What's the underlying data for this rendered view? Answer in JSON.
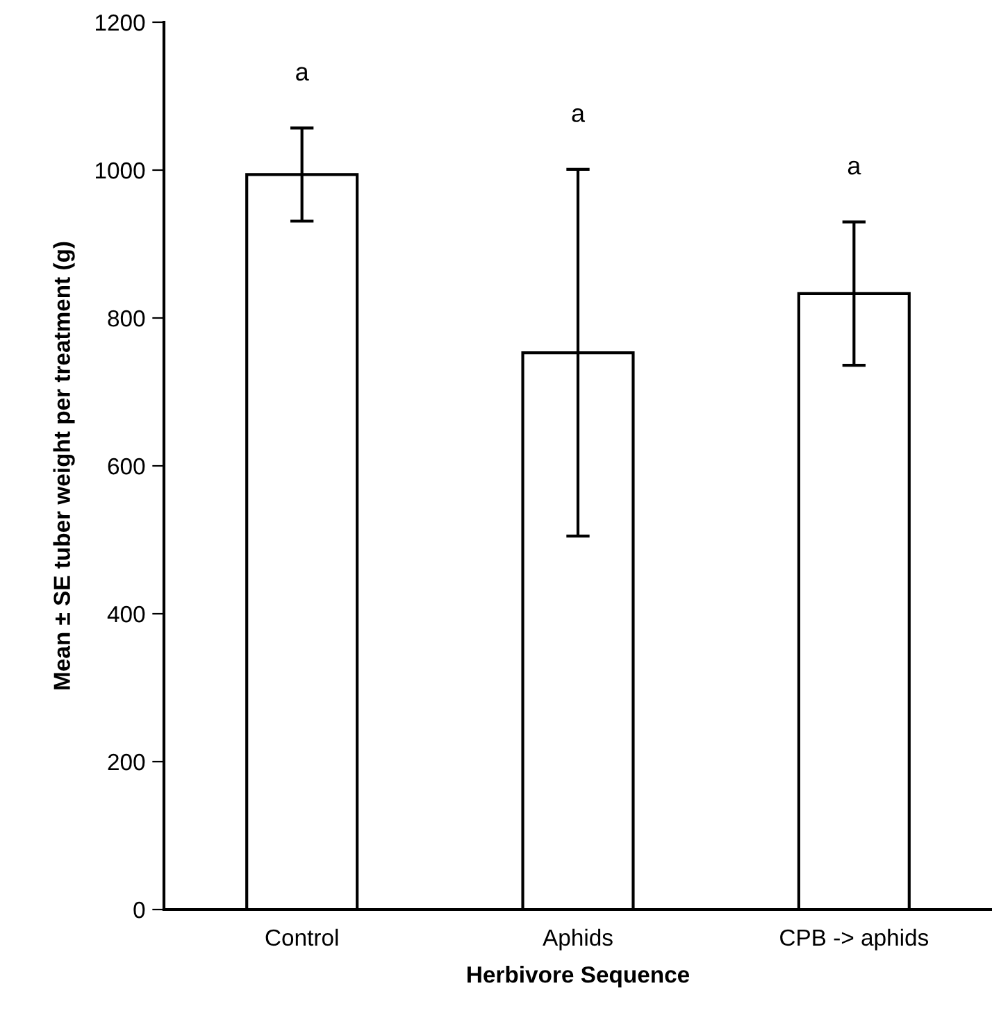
{
  "chart_data": {
    "type": "bar",
    "categories": [
      "Control",
      "Aphids",
      "CPB -> aphids"
    ],
    "values": [
      994,
      753,
      833
    ],
    "errors": [
      63,
      248,
      97
    ],
    "color": "#ffffff",
    "xlabel": "Herbivore Sequence",
    "ylabel": "Mean ± SE tuber weight per treatment (g)",
    "ylim": [
      0,
      1200
    ],
    "yticks": [
      0,
      200,
      400,
      600,
      800,
      1000,
      1200
    ],
    "annotations": [
      "a",
      "a",
      "a"
    ],
    "grid": false
  }
}
